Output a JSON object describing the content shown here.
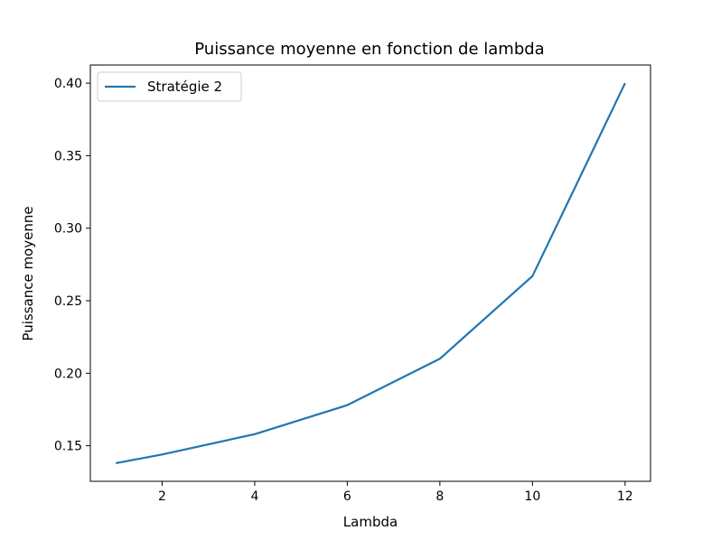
{
  "chart_data": {
    "type": "line",
    "title": "Puissance moyenne en fonction de lambda",
    "xlabel": "Lambda",
    "ylabel": "Puissance moyenne",
    "xlim": [
      0.45,
      12.55
    ],
    "ylim": [
      0.1255,
      0.4125
    ],
    "xticks": [
      2,
      4,
      6,
      8,
      10,
      12
    ],
    "yticks": [
      0.15,
      0.2,
      0.25,
      0.3,
      0.35,
      0.4
    ],
    "ytick_labels": [
      "0.15",
      "0.20",
      "0.25",
      "0.30",
      "0.35",
      "0.40"
    ],
    "grid": false,
    "legend_position": "upper-left",
    "series": [
      {
        "name": "Stratégie 2",
        "color": "#1f77b4",
        "x": [
          1,
          2,
          4,
          6,
          8,
          10,
          12
        ],
        "y": [
          0.138,
          0.144,
          0.158,
          0.178,
          0.21,
          0.267,
          0.4
        ]
      }
    ]
  }
}
